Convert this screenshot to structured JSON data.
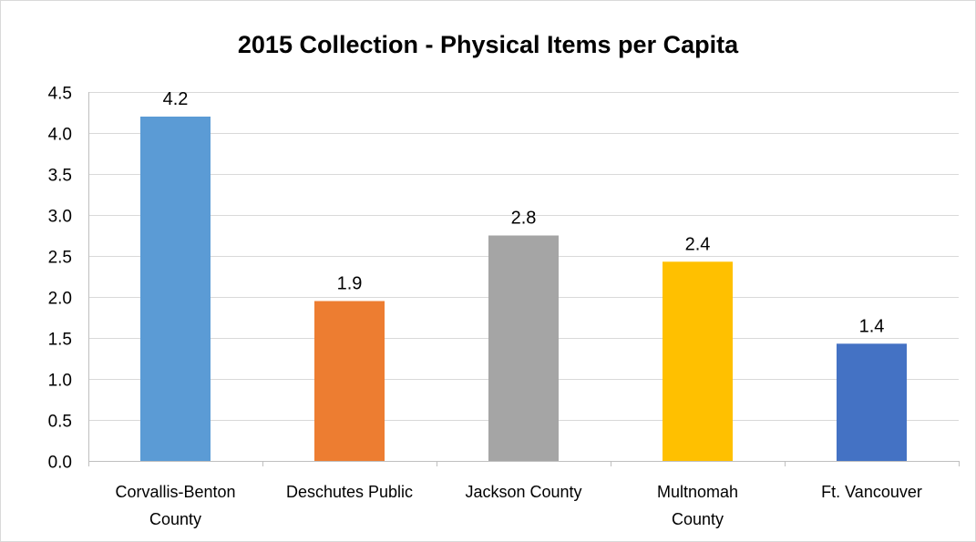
{
  "chart_data": {
    "type": "bar",
    "title": "2015 Collection - Physical Items per Capita",
    "xlabel": "",
    "ylabel": "",
    "ylim": [
      0,
      4.5
    ],
    "yticks": [
      "0.0",
      "0.5",
      "1.0",
      "1.5",
      "2.0",
      "2.5",
      "3.0",
      "3.5",
      "4.0",
      "4.5"
    ],
    "ytick_values": [
      0,
      0.5,
      1.0,
      1.5,
      2.0,
      2.5,
      3.0,
      3.5,
      4.0,
      4.5
    ],
    "grid": true,
    "categories": [
      [
        "Corvallis-Benton",
        "County"
      ],
      [
        "Deschutes Public"
      ],
      [
        "Jackson County"
      ],
      [
        "Multnomah",
        "County"
      ],
      [
        "Ft. Vancouver"
      ]
    ],
    "values": [
      4.2,
      1.95,
      2.75,
      2.43,
      1.43
    ],
    "data_labels": [
      "4.2",
      "1.9",
      "2.8",
      "2.4",
      "1.4"
    ],
    "colors": [
      "#5b9bd5",
      "#ed7d31",
      "#a5a5a5",
      "#ffc000",
      "#4472c4"
    ]
  }
}
